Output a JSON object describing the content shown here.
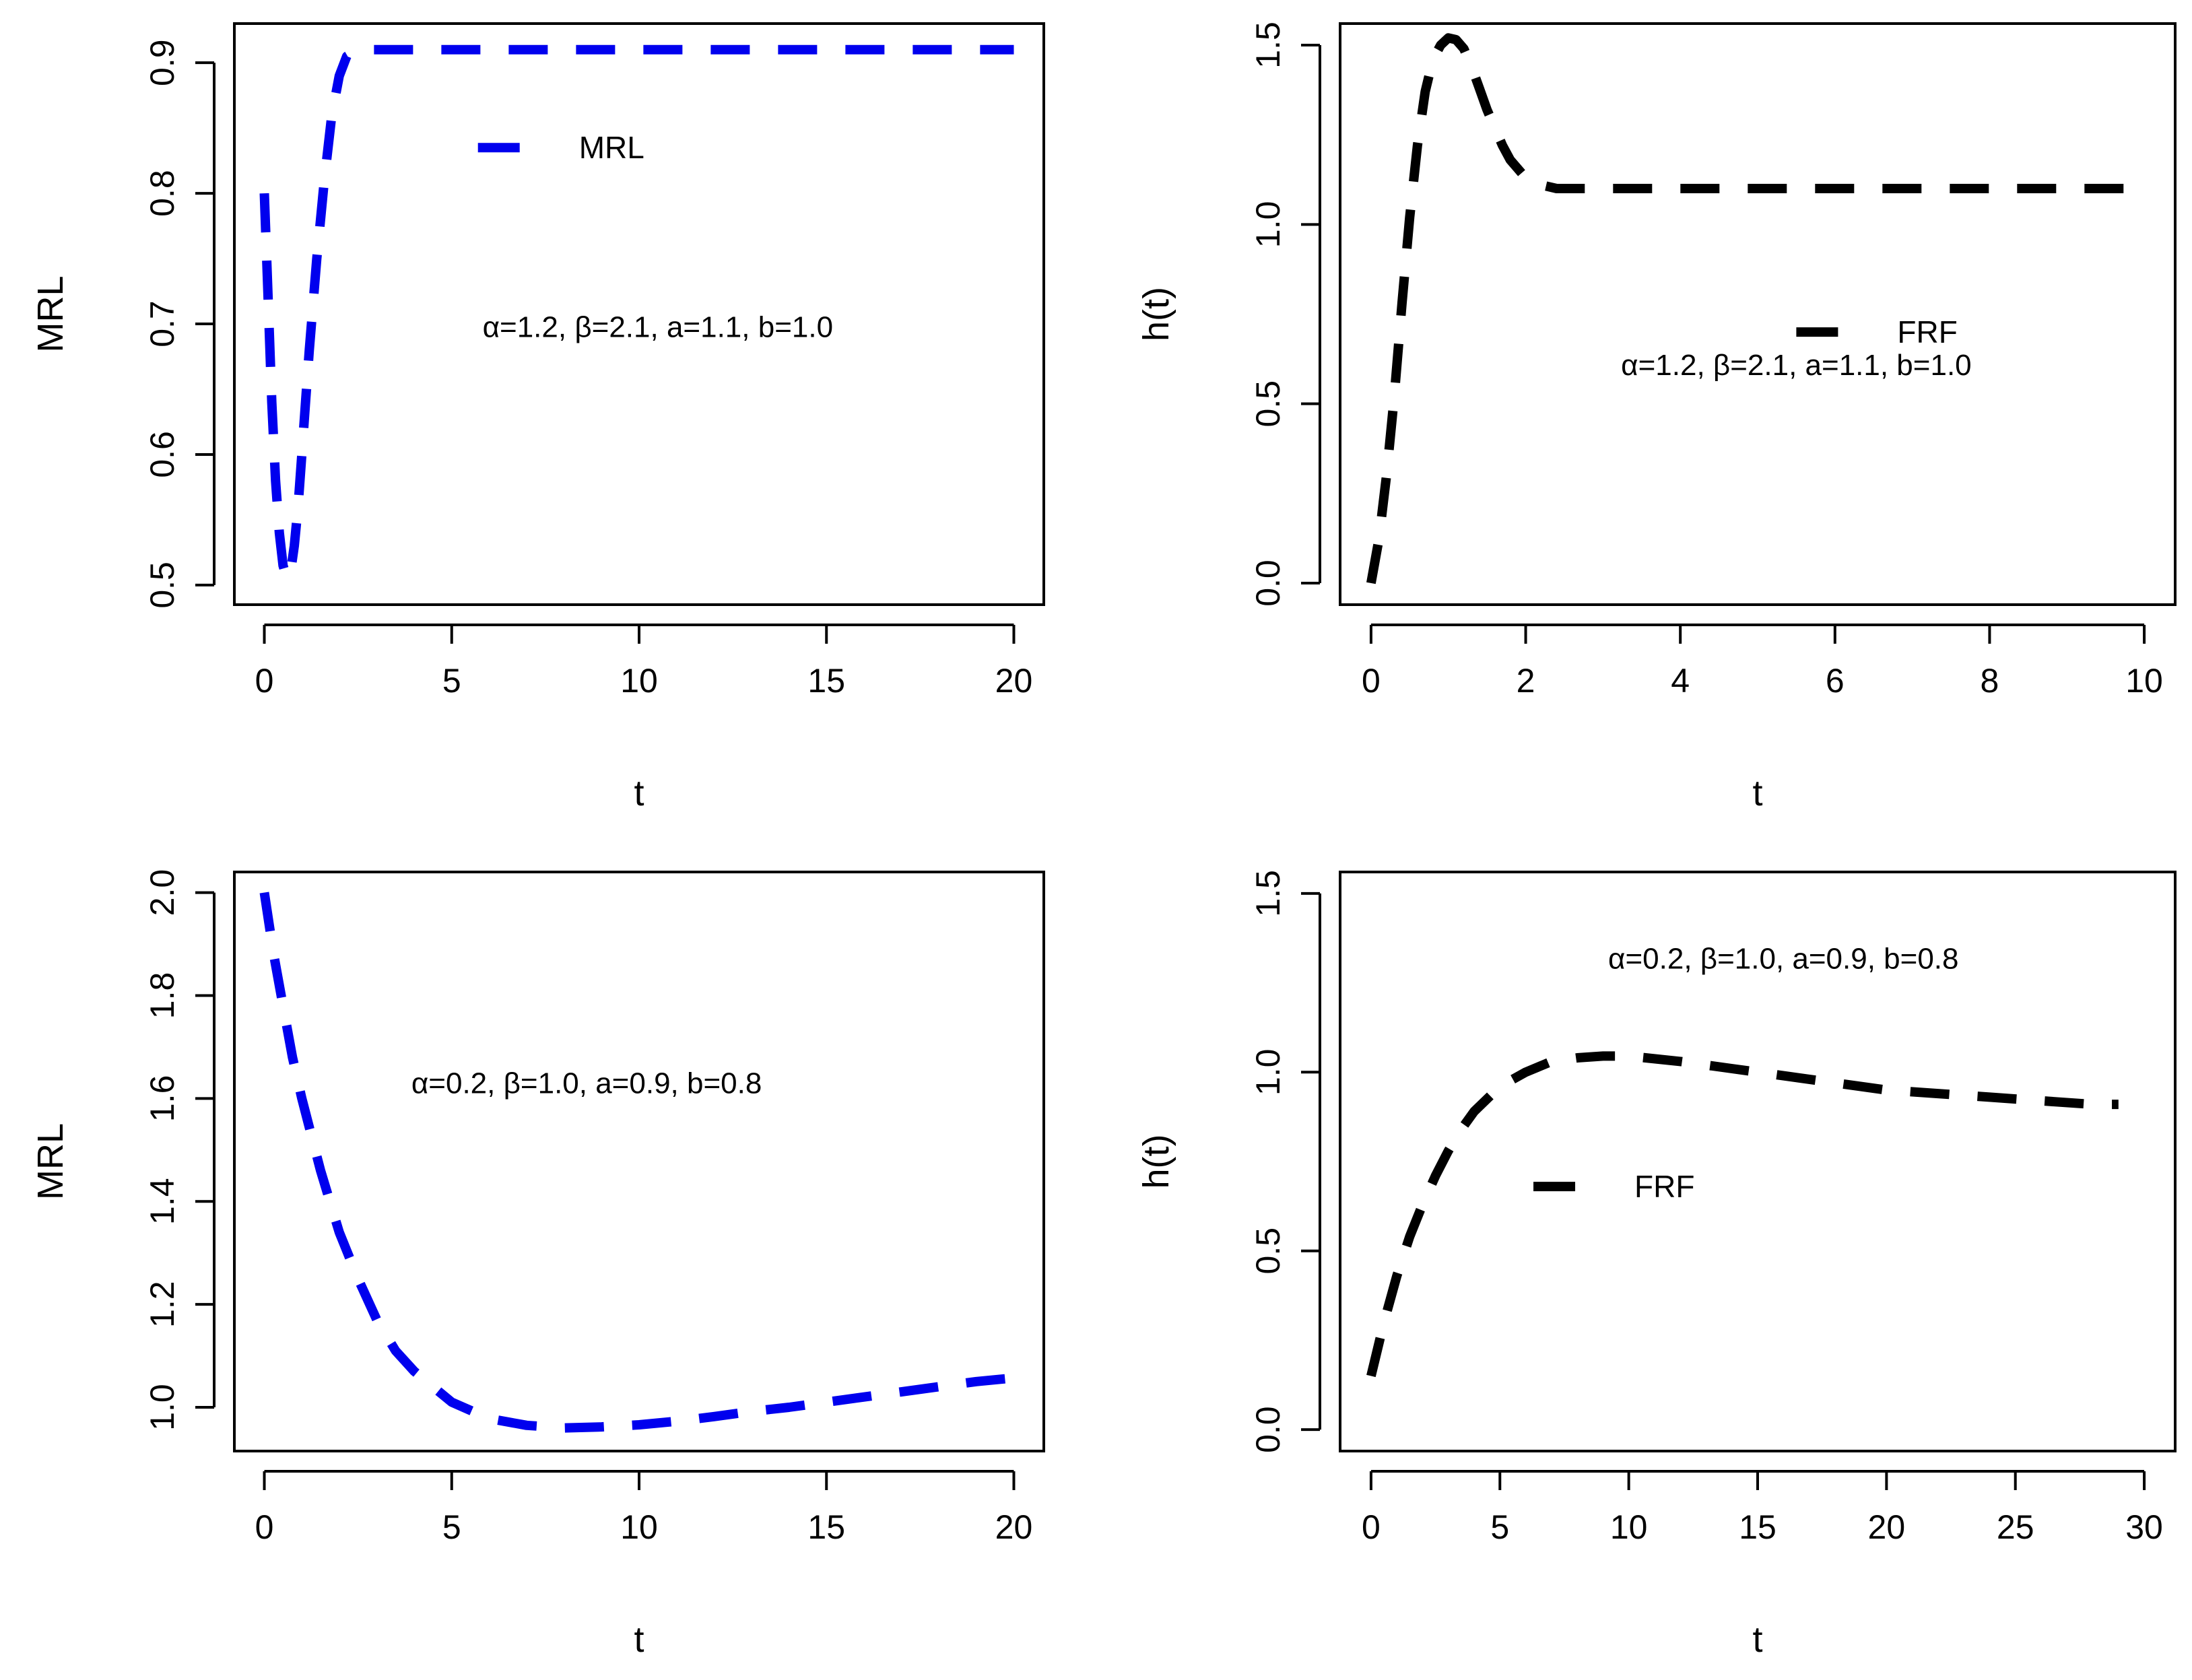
{
  "chart_data": [
    {
      "type": "line",
      "xlabel": "t",
      "ylabel": "MRL",
      "xlim": [
        -0.8,
        20.8
      ],
      "ylim": [
        0.485,
        0.93
      ],
      "xticks": [
        0,
        5,
        10,
        15,
        20
      ],
      "yticks": [
        0.5,
        0.6,
        0.7,
        0.8,
        0.9
      ],
      "xtick_labels": [
        "0",
        "5",
        "10",
        "15",
        "20"
      ],
      "ytick_labels": [
        "0.5",
        "0.6",
        "0.7",
        "0.8",
        "0.9"
      ],
      "annotation": "α=1.2, β=2.1, a=1.1, b=1.0",
      "annotation_at": [
        10.5,
        0.69
      ],
      "legend_at": [
        5.7,
        0.835
      ],
      "grid": false,
      "series": [
        {
          "name": "MRL",
          "color": "#0000ee",
          "dash": "dashed",
          "x": [
            0,
            0.1,
            0.2,
            0.3,
            0.4,
            0.5,
            0.6,
            0.7,
            0.8,
            0.9,
            1.0,
            1.1,
            1.2,
            1.4,
            1.6,
            1.8,
            2.0,
            2.2,
            2.5,
            3.0,
            4,
            6,
            8,
            10,
            12,
            14,
            16,
            18,
            20
          ],
          "y": [
            0.8,
            0.72,
            0.64,
            0.58,
            0.54,
            0.515,
            0.505,
            0.51,
            0.53,
            0.56,
            0.6,
            0.64,
            0.68,
            0.75,
            0.81,
            0.86,
            0.89,
            0.905,
            0.91,
            0.91,
            0.91,
            0.91,
            0.91,
            0.91,
            0.91,
            0.91,
            0.91,
            0.91,
            0.91
          ]
        }
      ]
    },
    {
      "type": "line",
      "xlabel": "t",
      "ylabel": "h(t)",
      "xlim": [
        -0.4,
        10.4
      ],
      "ylim": [
        -0.06,
        1.56
      ],
      "xticks": [
        0,
        2,
        4,
        6,
        8,
        10
      ],
      "yticks": [
        0,
        0.5,
        1.0,
        1.5
      ],
      "xtick_labels": [
        "0",
        "2",
        "4",
        "6",
        "8",
        "10"
      ],
      "ytick_labels": [
        "0.0",
        "0.5",
        "1.0",
        "1.5"
      ],
      "annotation": "α=1.2, β=2.1, a=1.1, b=1.0",
      "annotation_at": [
        5.5,
        0.58
      ],
      "legend_at": [
        5.5,
        0.7
      ],
      "grid": false,
      "series": [
        {
          "name": "FRF",
          "color": "#000000",
          "dash": "dashed",
          "x": [
            0,
            0.1,
            0.2,
            0.3,
            0.4,
            0.5,
            0.6,
            0.7,
            0.8,
            0.9,
            1.0,
            1.1,
            1.2,
            1.3,
            1.4,
            1.5,
            1.6,
            1.7,
            1.8,
            2.0,
            2.2,
            2.4,
            2.6,
            3.0,
            3.5,
            4,
            5,
            6,
            7,
            8,
            9,
            10
          ],
          "y": [
            0.0,
            0.12,
            0.3,
            0.52,
            0.78,
            1.02,
            1.22,
            1.37,
            1.46,
            1.5,
            1.52,
            1.515,
            1.49,
            1.44,
            1.38,
            1.32,
            1.27,
            1.22,
            1.18,
            1.13,
            1.11,
            1.1,
            1.1,
            1.1,
            1.1,
            1.1,
            1.1,
            1.1,
            1.1,
            1.1,
            1.1,
            1.1
          ]
        }
      ]
    },
    {
      "type": "line",
      "xlabel": "t",
      "ylabel": "MRL",
      "xlim": [
        -0.8,
        20.8
      ],
      "ylim": [
        0.915,
        2.04
      ],
      "xticks": [
        0,
        5,
        10,
        15,
        20
      ],
      "yticks": [
        1.0,
        1.2,
        1.4,
        1.6,
        1.8,
        2.0
      ],
      "xtick_labels": [
        "0",
        "5",
        "10",
        "15",
        "20"
      ],
      "ytick_labels": [
        "1.0",
        "1.2",
        "1.4",
        "1.6",
        "1.8",
        "2.0"
      ],
      "annotation": "α=0.2, β=1.0, a=0.9, b=0.8",
      "annotation_at": [
        8.6,
        1.61
      ],
      "grid": false,
      "series": [
        {
          "name": "MRL",
          "color": "#0000ee",
          "dash": "dashed",
          "x": [
            0,
            0.25,
            0.5,
            0.75,
            1.0,
            1.5,
            2.0,
            2.5,
            3.0,
            3.5,
            4.0,
            5.0,
            6.0,
            7.0,
            8.0,
            9.0,
            10.0,
            11.0,
            12.0,
            13.0,
            14.0,
            15.0,
            16.0,
            17.0,
            18.0,
            19.0,
            20.0
          ],
          "y": [
            2.0,
            1.88,
            1.78,
            1.68,
            1.6,
            1.46,
            1.34,
            1.25,
            1.17,
            1.11,
            1.07,
            1.01,
            0.978,
            0.965,
            0.96,
            0.962,
            0.966,
            0.973,
            0.982,
            0.992,
            1.0,
            1.01,
            1.02,
            1.03,
            1.04,
            1.05,
            1.057
          ]
        }
      ]
    },
    {
      "type": "line",
      "xlabel": "t",
      "ylabel": "h(t)",
      "xlim": [
        -1.2,
        31.2
      ],
      "ylim": [
        -0.06,
        1.56
      ],
      "xticks": [
        0,
        5,
        10,
        15,
        20,
        25,
        30
      ],
      "yticks": [
        0,
        0.5,
        1.0,
        1.5
      ],
      "xtick_labels": [
        "0",
        "5",
        "10",
        "15",
        "20",
        "25",
        "30"
      ],
      "ytick_labels": [
        "0.0",
        "0.5",
        "1.0",
        "1.5"
      ],
      "annotation": "α=0.2, β=1.0, a=0.9, b=0.8",
      "annotation_at": [
        16.0,
        1.29
      ],
      "legend_at": [
        6.3,
        0.68
      ],
      "grid": false,
      "series": [
        {
          "name": "FRF",
          "color": "#000000",
          "dash": "dashed",
          "x": [
            0,
            0.5,
            1,
            1.5,
            2,
            2.5,
            3,
            3.5,
            4,
            5,
            6,
            7,
            8,
            9,
            10,
            12,
            14,
            16,
            18,
            20,
            22,
            24,
            26,
            28,
            29
          ],
          "y": [
            0.15,
            0.3,
            0.43,
            0.54,
            0.63,
            0.71,
            0.78,
            0.84,
            0.89,
            0.96,
            1.0,
            1.03,
            1.04,
            1.045,
            1.045,
            1.03,
            1.01,
            0.99,
            0.97,
            0.95,
            0.94,
            0.93,
            0.92,
            0.91,
            0.91
          ]
        }
      ]
    }
  ]
}
